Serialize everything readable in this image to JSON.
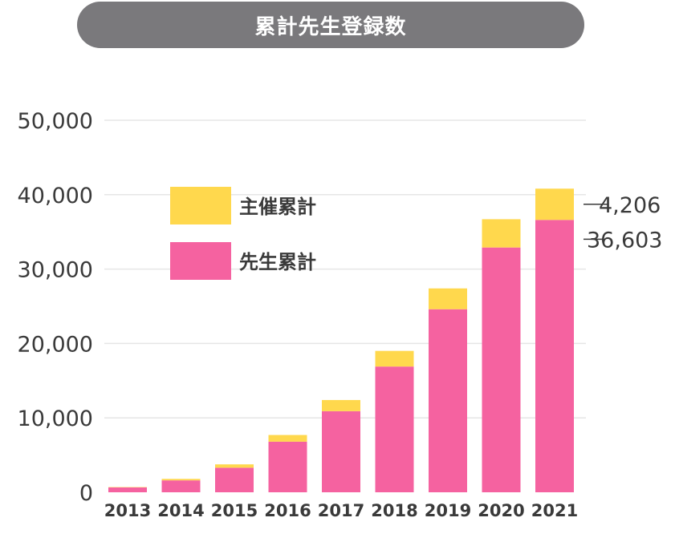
{
  "title": "累計先生登録数",
  "colors": {
    "title_bg": "#7a797c",
    "grid": "#e6e6e6",
    "teacher": "#f562a0",
    "sponsor": "#ffd84d",
    "text": "#3a3a3a"
  },
  "chart_data": {
    "type": "bar",
    "stacked": true,
    "categories": [
      "2013",
      "2014",
      "2015",
      "2016",
      "2017",
      "2018",
      "2019",
      "2020",
      "2021"
    ],
    "series": [
      {
        "name": "先生累計",
        "color": "#f562a0",
        "values": [
          650,
          1600,
          3300,
          6800,
          10900,
          16900,
          24600,
          32900,
          36603
        ]
      },
      {
        "name": "主催累計",
        "color": "#ffd84d",
        "values": [
          50,
          200,
          450,
          900,
          1500,
          2100,
          2800,
          3800,
          4206
        ]
      }
    ],
    "ylim": [
      0,
      50000
    ],
    "yticks": [
      0,
      10000,
      20000,
      30000,
      40000,
      50000
    ],
    "ytick_labels": [
      "0",
      "10,000",
      "20,000",
      "30,000",
      "40,000",
      "50,000"
    ],
    "legend": [
      "主催累計",
      "先生累計"
    ],
    "legend_position": "top-left",
    "grid": true,
    "annotations": [
      "4,206",
      "36,603"
    ]
  }
}
